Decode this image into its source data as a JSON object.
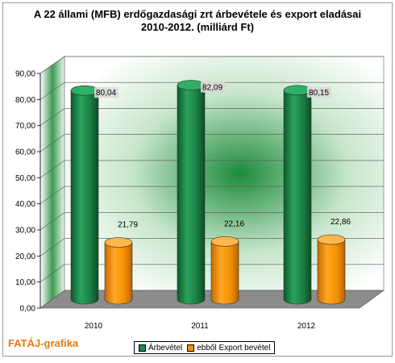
{
  "chart_data": {
    "type": "bar",
    "title_line1": "A 22 állami (MFB) erdőgazdasági zrt árbevétele és export eladásai",
    "title_line2": "2010-2012. (milliárd Ft)",
    "categories": [
      "2010",
      "2011",
      "2012"
    ],
    "series": [
      {
        "name": "Árbevétel",
        "values": [
          80.04,
          82.09,
          80.15
        ],
        "labels": [
          "80,04",
          "82,09",
          "80,15"
        ],
        "color": "#1f8a4c"
      },
      {
        "name": "ebből Export bevétel",
        "values": [
          21.79,
          22.16,
          22.86
        ],
        "labels": [
          "21,79",
          "22,16",
          "22,86"
        ],
        "color": "#f39200"
      }
    ],
    "ylim": [
      0,
      90
    ],
    "yticks": [
      "0,00",
      "10,00",
      "20,00",
      "30,00",
      "40,00",
      "50,00",
      "60,00",
      "70,00",
      "80,00",
      "90,00"
    ],
    "grid": true,
    "legend_position": "bottom",
    "back_wall_color": "#1d8a3c",
    "floor_color": "#8c8c8c"
  },
  "branding": {
    "text": "FATÁJ-grafika",
    "color": "#e8780f"
  }
}
